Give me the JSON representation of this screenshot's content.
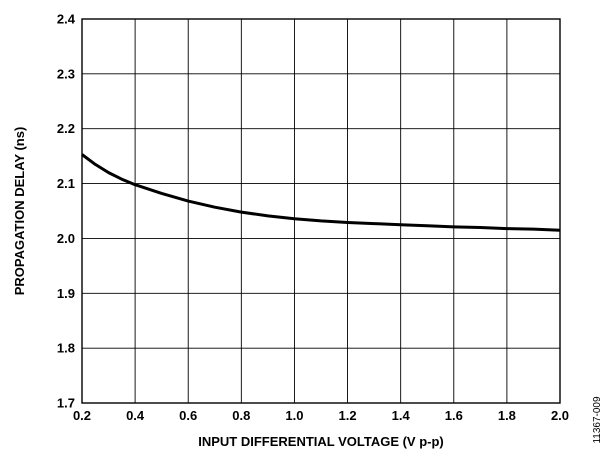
{
  "chart_data": {
    "type": "line",
    "title": "",
    "xlabel": "INPUT DIFFERENTIAL VOLTAGE  (V p-p)",
    "ylabel": "PROPAGATION DELAY (ns)",
    "xlim": [
      0.2,
      2.0
    ],
    "ylim": [
      1.7,
      2.4
    ],
    "xticks": [
      "0.2",
      "0.4",
      "0.6",
      "0.8",
      "1.0",
      "1.2",
      "1.4",
      "1.6",
      "1.8",
      "2.0"
    ],
    "yticks": [
      "1.7",
      "1.8",
      "1.9",
      "2.0",
      "2.1",
      "2.2",
      "2.3",
      "2.4"
    ],
    "grid": true,
    "legend": "none",
    "series": [
      {
        "color": "#000000",
        "x": [
          0.2,
          0.25,
          0.3,
          0.35,
          0.4,
          0.5,
          0.6,
          0.7,
          0.8,
          0.9,
          1.0,
          1.1,
          1.2,
          1.3,
          1.4,
          1.5,
          1.6,
          1.7,
          1.8,
          1.9,
          2.0
        ],
        "y": [
          2.153,
          2.135,
          2.12,
          2.108,
          2.098,
          2.082,
          2.068,
          2.057,
          2.048,
          2.041,
          2.036,
          2.032,
          2.029,
          2.027,
          2.025,
          2.023,
          2.021,
          2.02,
          2.018,
          2.017,
          2.015
        ]
      }
    ]
  },
  "figure_id": "11367-009"
}
